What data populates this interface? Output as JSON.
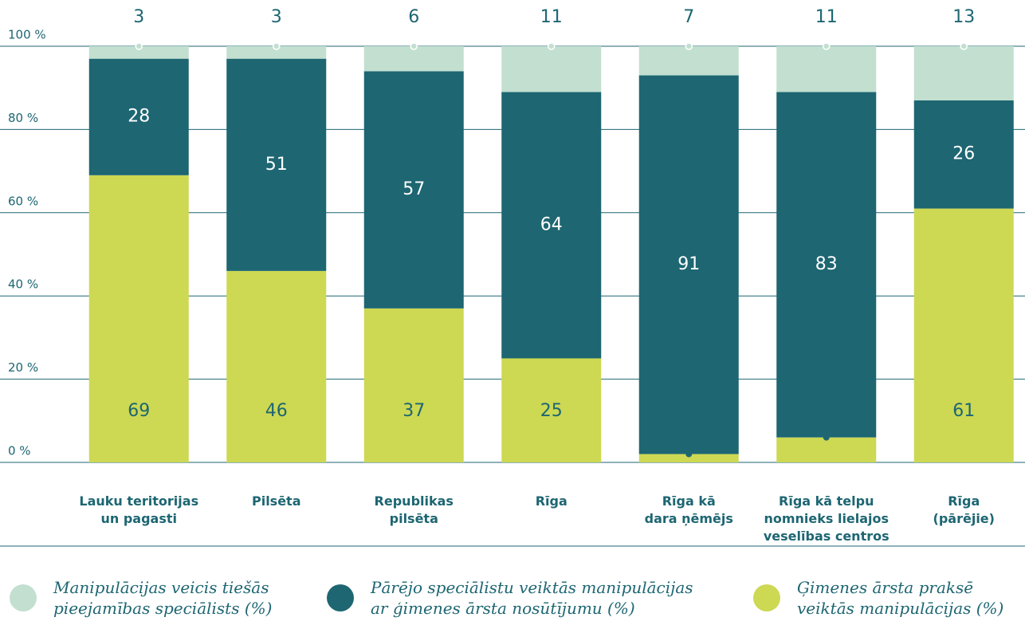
{
  "chart_data": {
    "type": "stacked_bar",
    "categories": [
      "Lauku teritorijas\nun pagasti",
      "Pilsēta",
      "Republikas\npilsēta",
      "Rīga",
      "Rīga kā\ndara ņēmējs",
      "Rīga kā telpu\nnomnieks lielajos\nveselības centros",
      "Rīga\n(pārējie)"
    ],
    "series": [
      {
        "name": "Ģimenes ārsta praksē\nveiktās manipulācijas (%)",
        "color": "#cdd853",
        "values": [
          69,
          46,
          37,
          25,
          2,
          6,
          61
        ]
      },
      {
        "name": "Pārējo speciālistu veiktās manipulācijas\nar ģimenes ārsta nosūtījumu (%)",
        "color": "#1d6672",
        "values": [
          28,
          51,
          57,
          64,
          91,
          83,
          26
        ]
      },
      {
        "name": "Manipulācijas veicis tiešās\npieejamības speciālists (%)",
        "color": "#c2dfd0",
        "values": [
          3,
          3,
          6,
          11,
          7,
          11,
          13
        ]
      }
    ],
    "ylim": [
      0,
      100
    ],
    "yticks": [
      {
        "value": 0,
        "label": "0 %"
      },
      {
        "value": 20,
        "label": "20 %"
      },
      {
        "value": 40,
        "label": "40 %"
      },
      {
        "value": 60,
        "label": "60 %"
      },
      {
        "value": 80,
        "label": "80 %"
      },
      {
        "value": 100,
        "label": "100 %"
      }
    ],
    "grid": true
  }
}
